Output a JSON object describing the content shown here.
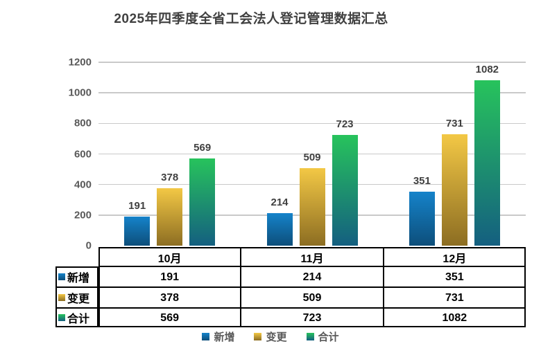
{
  "title": "2025年四季度全省工会法人登记管理数据汇总",
  "chart_data": {
    "type": "bar",
    "title": "2025年四季度全省工会法人登记管理数据汇总",
    "categories": [
      "10月",
      "11月",
      "12月"
    ],
    "series": [
      {
        "name": "新增",
        "values": [
          191,
          214,
          351
        ],
        "color_top": "#1583ca",
        "color_bottom": "#0d4e7a"
      },
      {
        "name": "变更",
        "values": [
          378,
          509,
          731
        ],
        "color_top": "#f3c845",
        "color_bottom": "#8c6d22"
      },
      {
        "name": "合计",
        "values": [
          569,
          723,
          1082
        ],
        "color_top": "#27c35c",
        "color_bottom": "#145f80"
      }
    ],
    "ylim": [
      0,
      1200
    ],
    "yticks": [
      0,
      200,
      400,
      600,
      800,
      1000,
      1200
    ],
    "grid": true,
    "data_labels": true,
    "legend_position": "bottom",
    "data_table_with_legend_keys": true
  },
  "colors": {
    "title_text": "#404040",
    "axis_text": "#595959",
    "gridline": "#c9c9c9",
    "table_border": "#000000",
    "table_text": "#000000",
    "legend_text": "#595959",
    "background": "#ffffff"
  }
}
